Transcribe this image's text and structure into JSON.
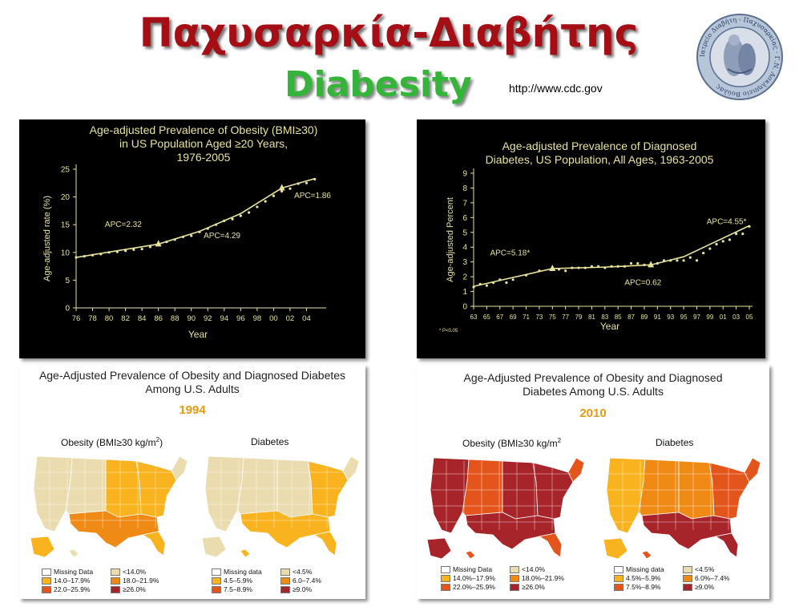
{
  "header": {
    "title_greek": "Παχυσαρκία-Διαβήτης",
    "title_english": "Diabesity",
    "source": "http://www.cdc.gov",
    "seal_text": "Ιατρείο Διαβήτη - Παχυσαρκίας · Γ.Ν. Ασκληπιείο Βούλας"
  },
  "colors": {
    "title_red": "#a50e15",
    "title_green": "#35b43a",
    "chart_bg": "#000000",
    "chart_line": "#e8e39a",
    "year_orange": "#e59a12",
    "map_light": "#eadcae",
    "map_orange1": "#f8b31e",
    "map_orange2": "#ef8a14",
    "map_red1": "#e4551b",
    "map_darkred": "#a6242a"
  },
  "chart_data": [
    {
      "type": "line",
      "title": "Age-adjusted Prevalence of Obesity (BMI≥30) in US Population Aged ≥20 Years, 1976-2005",
      "title_lines": [
        "Age-adjusted Prevalence of Obesity (BMI≥30)",
        "in US Population Aged ≥20 Years,",
        "1976-2005"
      ],
      "xlabel": "Year",
      "ylabel": "Age-adjusted rate (%)",
      "xticks": [
        "76",
        "78",
        "80",
        "82",
        "84",
        "86",
        "88",
        "90",
        "92",
        "94",
        "96",
        "98",
        "00",
        "02",
        "04"
      ],
      "xlim": [
        1976,
        2006
      ],
      "ylim": [
        0,
        25
      ],
      "yticks": [
        0,
        5,
        10,
        15,
        20,
        25
      ],
      "series": [
        {
          "type": "scatter",
          "x": [
            1976,
            1977,
            1978,
            1979,
            1980,
            1981,
            1982,
            1983,
            1984,
            1985,
            1986,
            1987,
            1988,
            1989,
            1990,
            1991,
            1992,
            1993,
            1994,
            1995,
            1996,
            1997,
            1998,
            1999,
            2000,
            2001,
            2002,
            2003,
            2004,
            2005
          ],
          "y": [
            9.1,
            9.3,
            9.5,
            9.7,
            10.0,
            10.1,
            10.3,
            10.5,
            10.6,
            11.0,
            11.3,
            11.9,
            12.3,
            12.8,
            13.0,
            13.7,
            14.3,
            15.0,
            15.7,
            16.0,
            16.6,
            17.2,
            18.2,
            19.2,
            20.2,
            21.0,
            21.5,
            22.4,
            22.5,
            23.2
          ]
        },
        {
          "type": "line",
          "x": [
            1976,
            1986,
            1991,
            1996,
            2001,
            2005
          ],
          "y": [
            9.1,
            11.5,
            13.8,
            17.0,
            21.6,
            23.3
          ]
        }
      ],
      "joinpoints": {
        "x": [
          1986,
          2001
        ],
        "y": [
          11.5,
          21.6
        ]
      },
      "annotations": [
        {
          "text": "APC=2.32",
          "x": 1979.5,
          "y": 14.6
        },
        {
          "text": "APC=4.29",
          "x": 1991.5,
          "y": 12.6
        },
        {
          "text": "APC=1.86",
          "x": 2002.5,
          "y": 19.8
        }
      ]
    },
    {
      "type": "line",
      "title": "Age-adjusted Prevalence of Diagnosed Diabetes, US Population, All Ages, 1963-2005",
      "title_lines": [
        "Age-adjusted Prevalence of Diagnosed",
        "Diabetes, US Population, All Ages, 1963-2005"
      ],
      "xlabel": "Year",
      "ylabel": "Age-adjusted Percent",
      "xticks": [
        "63",
        "65",
        "67",
        "69",
        "71",
        "73",
        "75",
        "77",
        "79",
        "81",
        "83",
        "85",
        "87",
        "89",
        "91",
        "93",
        "95",
        "97",
        "99",
        "01",
        "03",
        "05"
      ],
      "xlim": [
        1963,
        2005
      ],
      "ylim": [
        0,
        9
      ],
      "yticks": [
        0,
        1,
        2,
        3,
        4,
        5,
        6,
        7,
        8,
        9
      ],
      "footnote": "* P<0.05",
      "series": [
        {
          "type": "scatter",
          "x": [
            1963,
            1964,
            1965,
            1966,
            1967,
            1968,
            1969,
            1971,
            1973,
            1975,
            1976,
            1977,
            1978,
            1979,
            1980,
            1981,
            1982,
            1983,
            1984,
            1985,
            1986,
            1987,
            1988,
            1989,
            1990,
            1991,
            1992,
            1993,
            1994,
            1995,
            1996,
            1997,
            1998,
            1999,
            2000,
            2001,
            2002,
            2003,
            2004,
            2005
          ],
          "y": [
            1.3,
            1.5,
            1.4,
            1.6,
            1.8,
            1.6,
            1.8,
            2.1,
            2.4,
            2.5,
            2.5,
            2.4,
            2.6,
            2.6,
            2.6,
            2.7,
            2.7,
            2.6,
            2.7,
            2.7,
            2.7,
            2.9,
            2.9,
            2.8,
            2.8,
            2.9,
            3.1,
            3.1,
            3.1,
            3.1,
            3.3,
            3.1,
            3.6,
            3.9,
            4.2,
            4.4,
            4.5,
            4.9,
            4.9,
            5.4
          ]
        },
        {
          "type": "line",
          "x": [
            1963,
            1975,
            1983,
            1990,
            1995,
            2005
          ],
          "y": [
            1.35,
            2.55,
            2.65,
            2.8,
            3.35,
            5.45
          ]
        }
      ],
      "joinpoints": {
        "x": [
          1975,
          1990
        ],
        "y": [
          2.55,
          2.8
        ]
      },
      "annotations": [
        {
          "text": "APC=5.18*",
          "x": 1965.5,
          "y": 3.45
        },
        {
          "text": "APC=0.62",
          "x": 1986,
          "y": 1.45
        },
        {
          "text": "APC=4.55*",
          "x": 1998.5,
          "y": 5.55
        }
      ]
    }
  ],
  "maps": [
    {
      "title_lines": [
        "Age-Adjusted Prevalence of Obesity and Diagnosed Diabetes",
        "Among U.S. Adults"
      ],
      "year": "1994",
      "obesity_label": "Obesity (BMI≥30 kg/m",
      "obesity_sup": "2",
      "obesity_close": ")",
      "diabetes_label": "Diabetes",
      "obesity_legend": [
        "Missing Data",
        "<14.0%",
        "14.0–17.9%",
        "18.0–21.9%",
        "22.0–25.9%",
        "≥26.0%"
      ],
      "diabetes_legend": [
        "Missing data",
        "<4.5%",
        "4.5–5.9%",
        "6.0–7.4%",
        "7.5–8.9%",
        "≥9.0%"
      ]
    },
    {
      "title_lines": [
        "Age-Adjusted Prevalence of Obesity and Diagnosed",
        "Diabetes Among U.S. Adults"
      ],
      "year": "2010",
      "obesity_label": "Obesity (BMI≥30 kg/m",
      "obesity_sup": "2",
      "obesity_close": "",
      "diabetes_label": "Diabetes",
      "obesity_legend": [
        "Missing Data",
        "<14.0%",
        "14.0%–17.9%",
        "18.0%–21.9%",
        "22.0%–25.9%",
        "≥26.0%"
      ],
      "diabetes_legend": [
        "Missing data",
        "<4.5%",
        "4.5%–5.9%",
        "6.0%–7.4%",
        "7.5%–8.9%",
        "≥9.0%"
      ]
    }
  ],
  "legend_colors": {
    "obesity": [
      "#ffffff",
      "#eadcae",
      "#f8b31e",
      "#ef8a14",
      "#e4551b",
      "#a6242a"
    ],
    "diabetes": [
      "#ffffff",
      "#eadcae",
      "#f8b31e",
      "#ef8a14",
      "#e4551b",
      "#a6242a"
    ]
  }
}
